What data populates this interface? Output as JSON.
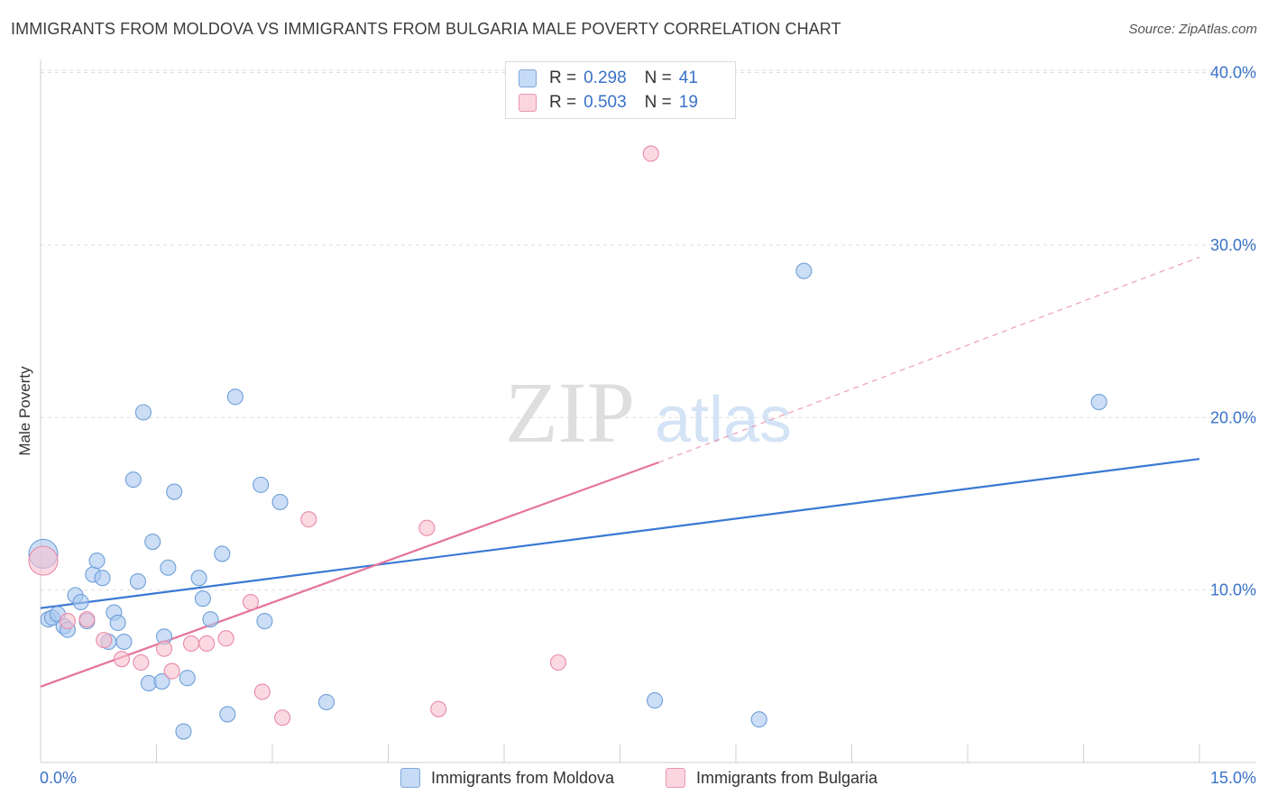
{
  "title": "IMMIGRANTS FROM MOLDOVA VS IMMIGRANTS FROM BULGARIA MALE POVERTY CORRELATION CHART",
  "source": "Source: ZipAtlas.com",
  "watermark": {
    "zip": "ZIP",
    "atlas": "atlas"
  },
  "legend": {
    "rows": [
      {
        "r_label": "R =",
        "r_value": "0.298",
        "n_label": "N =",
        "n_value": "41",
        "color": "#a8c8f0",
        "border": "#6f9fd8"
      },
      {
        "r_label": "R =",
        "r_value": "0.503",
        "n_label": "N =",
        "n_value": "19",
        "color": "#f8c0d0",
        "border": "#e88aa8"
      }
    ]
  },
  "bottom_legend": [
    {
      "label": "Immigrants from Moldova",
      "color": "#c6dbf5",
      "border": "#7fa8dd"
    },
    {
      "label": "Immigrants from Bulgaria",
      "color": "#fbd5e0",
      "border": "#e897b0"
    }
  ],
  "chart_data": {
    "type": "scatter",
    "title": "IMMIGRANTS FROM MOLDOVA VS IMMIGRANTS FROM BULGARIA MALE POVERTY CORRELATION CHART",
    "xlabel": "",
    "ylabel": "Male Poverty",
    "xlim": [
      0,
      15
    ],
    "ylim": [
      0,
      40.5
    ],
    "x_tick_labels": [
      "0.0%",
      "15.0%"
    ],
    "y_ticks": [
      10,
      20,
      30,
      40
    ],
    "y_tick_labels": [
      "10.0%",
      "20.0%",
      "30.0%",
      "40.0%"
    ],
    "colors": {
      "moldova": "#3a78d4",
      "bulgaria": "#e57399",
      "moldova_fill": "#a8c8f0",
      "bulgaria_fill": "#f8c0d0"
    },
    "series": [
      {
        "name": "Immigrants from Moldova",
        "points": [
          [
            0.0,
            12.1
          ],
          [
            0.1,
            8.3
          ],
          [
            0.15,
            8.4
          ],
          [
            0.22,
            8.6
          ],
          [
            0.3,
            7.9
          ],
          [
            0.35,
            7.7
          ],
          [
            0.45,
            9.7
          ],
          [
            0.52,
            9.3
          ],
          [
            0.6,
            8.2
          ],
          [
            0.68,
            10.9
          ],
          [
            0.73,
            11.7
          ],
          [
            0.8,
            10.7
          ],
          [
            0.88,
            7.0
          ],
          [
            0.95,
            8.7
          ],
          [
            1.0,
            8.1
          ],
          [
            1.08,
            7.0
          ],
          [
            1.2,
            16.4
          ],
          [
            1.26,
            10.5
          ],
          [
            1.33,
            20.3
          ],
          [
            1.4,
            4.6
          ],
          [
            1.45,
            12.8
          ],
          [
            1.57,
            4.7
          ],
          [
            1.6,
            7.3
          ],
          [
            1.65,
            11.3
          ],
          [
            1.73,
            15.7
          ],
          [
            1.85,
            1.8
          ],
          [
            1.9,
            4.9
          ],
          [
            2.05,
            10.7
          ],
          [
            2.1,
            9.5
          ],
          [
            2.2,
            8.3
          ],
          [
            2.35,
            12.1
          ],
          [
            2.42,
            2.8
          ],
          [
            2.52,
            21.2
          ],
          [
            2.85,
            16.1
          ],
          [
            2.9,
            8.2
          ],
          [
            3.1,
            15.1
          ],
          [
            3.7,
            3.5
          ],
          [
            7.95,
            3.6
          ],
          [
            9.3,
            2.5
          ],
          [
            9.88,
            28.5
          ],
          [
            13.7,
            20.9
          ]
        ],
        "trend": {
          "x0": 0.0,
          "y0": 8.95,
          "x1": 15.0,
          "y1": 17.6
        }
      },
      {
        "name": "Immigrants from Bulgaria",
        "points": [
          [
            0.0,
            11.7
          ],
          [
            0.35,
            8.2
          ],
          [
            0.6,
            8.3
          ],
          [
            0.82,
            7.1
          ],
          [
            1.05,
            6.0
          ],
          [
            1.3,
            5.8
          ],
          [
            1.6,
            6.6
          ],
          [
            1.7,
            5.3
          ],
          [
            1.95,
            6.9
          ],
          [
            2.15,
            6.9
          ],
          [
            2.4,
            7.2
          ],
          [
            2.72,
            9.3
          ],
          [
            2.87,
            4.1
          ],
          [
            3.13,
            2.6
          ],
          [
            3.47,
            14.1
          ],
          [
            5.0,
            13.6
          ],
          [
            5.15,
            3.1
          ],
          [
            6.7,
            5.8
          ],
          [
            7.9,
            35.3
          ]
        ],
        "trend": {
          "x0": 0.0,
          "y0": 4.4,
          "x1": 8.0,
          "y1": 17.4,
          "dashed_to_x": 15.0,
          "dashed_to_y": 29.3
        }
      }
    ]
  }
}
